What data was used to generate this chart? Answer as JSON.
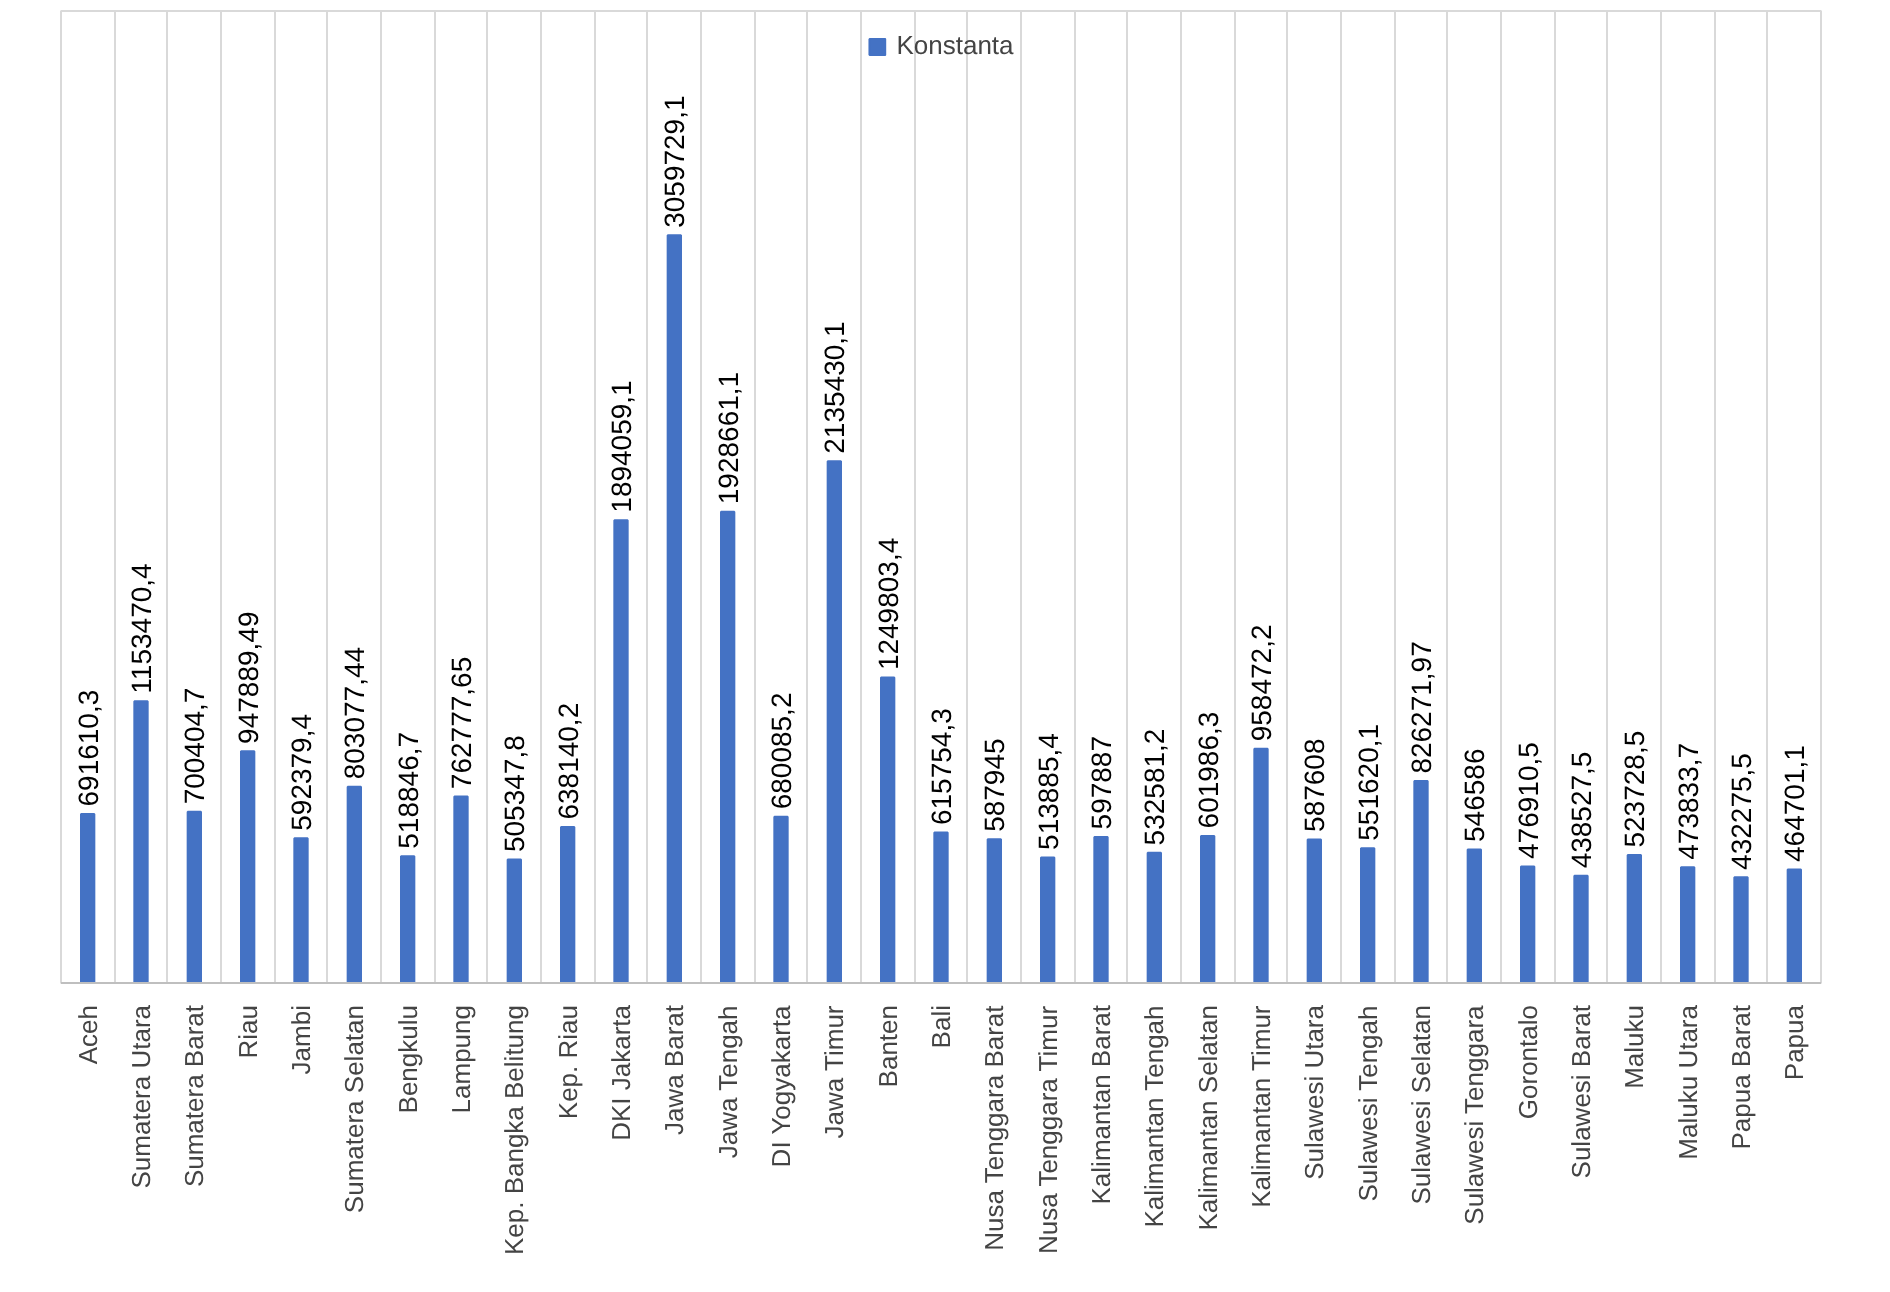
{
  "chart_data": {
    "type": "bar",
    "categories": [
      "Aceh",
      "Sumatera Utara",
      "Sumatera Barat",
      "Riau",
      "Jambi",
      "Sumatera Selatan",
      "Bengkulu",
      "Lampung",
      "Kep. Bangka Belitung",
      "Kep. Riau",
      "DKI Jakarta",
      "Jawa Barat",
      "Jawa Tengah",
      "DI Yogyakarta",
      "Jawa Timur",
      "Banten",
      "Bali",
      "Nusa Tenggara Barat",
      "Nusa Tenggara Timur",
      "Kalimantan Barat",
      "Kalimantan Tengah",
      "Kalimantan Selatan",
      "Kalimantan Timur",
      "Sulawesi Utara",
      "Sulawesi Tengah",
      "Sulawesi Selatan",
      "Sulawesi Tenggara",
      "Gorontalo",
      "Sulawesi Barat",
      "Maluku",
      "Maluku Utara",
      "Papua Barat",
      "Papua"
    ],
    "series": [
      {
        "name": "Konstanta",
        "color": "#4472c4",
        "values": [
          691610.3,
          1153470.4,
          700404.7,
          947889.49,
          592379.4,
          803077.44,
          518846.7,
          762777.65,
          505347.8,
          638140.2,
          1894059.1,
          3059729.1,
          1928661.1,
          680085.2,
          2135430.1,
          1249803.4,
          615754.3,
          587945,
          513885.4,
          597887,
          532581.2,
          601986.3,
          958472.2,
          587608,
          551620.1,
          826271.97,
          546586,
          476910.5,
          438527.5,
          523728.5,
          473833.7,
          432275.5,
          464701.1
        ],
        "value_labels": [
          "691610,3",
          "1153470,4",
          "700404,7",
          "947889,49",
          "592379,4",
          "803077,44",
          "518846,7",
          "762777,65",
          "505347,8",
          "638140,2",
          "1894059,1",
          "3059729,1",
          "1928661,1",
          "680085,2",
          "2135430,1",
          "1249803,4",
          "615754,3",
          "587945",
          "513885,4",
          "597887",
          "532581,2",
          "601986,3",
          "958472,2",
          "587608",
          "551620,1",
          "826271,97",
          "546586",
          "476910,5",
          "438527,5",
          "523728,5",
          "473833,7",
          "432275,5",
          "464701,1"
        ]
      }
    ],
    "grid": "x",
    "legend": "top"
  }
}
